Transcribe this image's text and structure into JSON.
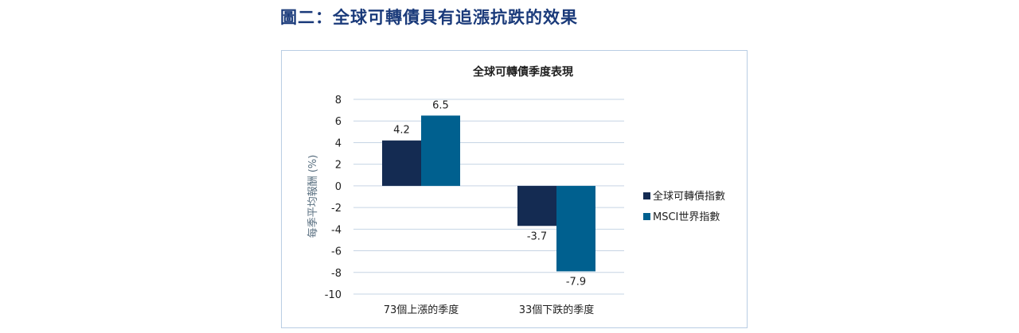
{
  "figure": {
    "title": "圖二：全球可轉債具有追漲抗跌的效果"
  },
  "chart_data": {
    "type": "bar",
    "title": "全球可轉債季度表現",
    "ylabel": "每季平均報酬 (%)",
    "xlabel": "",
    "categories": [
      "73個上漲的季度",
      "33個下跌的季度"
    ],
    "series": [
      {
        "name": "全球可轉債指數",
        "values": [
          4.2,
          -3.7
        ],
        "color": "#142b52"
      },
      {
        "name": "MSCI世界指數",
        "values": [
          6.5,
          -7.9
        ],
        "color": "#00608f"
      }
    ],
    "ylim": [
      -10,
      8
    ],
    "yticks": [
      8,
      6,
      4,
      2,
      0,
      -2,
      -4,
      -6,
      -8,
      -10
    ],
    "grid": true,
    "legend": "right"
  }
}
